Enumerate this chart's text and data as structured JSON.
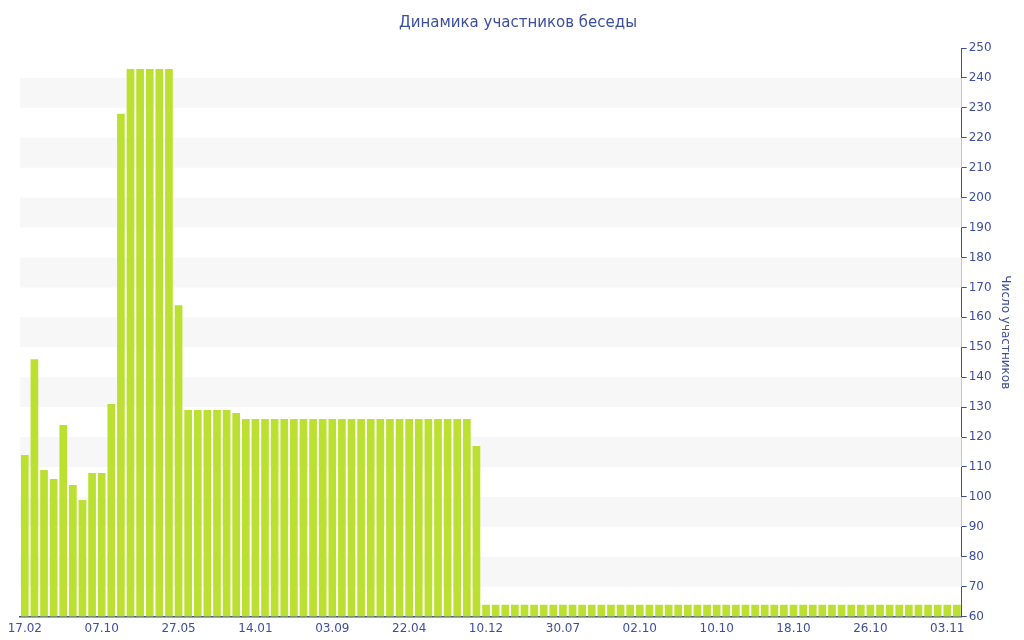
{
  "chart_data": {
    "type": "bar",
    "title": "Динамика участников беседы",
    "ylabel": "Число участников",
    "categories": [
      "17.02",
      null,
      null,
      null,
      null,
      null,
      null,
      null,
      "07.10",
      null,
      null,
      null,
      null,
      null,
      null,
      null,
      "27.05",
      null,
      null,
      null,
      null,
      null,
      null,
      null,
      "14.01",
      null,
      null,
      null,
      null,
      null,
      null,
      null,
      "03.09",
      null,
      null,
      null,
      null,
      null,
      null,
      null,
      "22.04",
      null,
      null,
      null,
      null,
      null,
      null,
      null,
      "10.12",
      null,
      null,
      null,
      null,
      null,
      null,
      null,
      "30.07",
      null,
      null,
      null,
      null,
      null,
      null,
      null,
      "02.10",
      null,
      null,
      null,
      null,
      null,
      null,
      null,
      "10.10",
      null,
      null,
      null,
      null,
      null,
      null,
      null,
      "18.10",
      null,
      null,
      null,
      null,
      null,
      null,
      null,
      "26.10",
      null,
      null,
      null,
      null,
      null,
      null,
      null,
      "03.11",
      null
    ],
    "values": [
      114,
      146,
      109,
      106,
      124,
      104,
      99,
      108,
      108,
      131,
      228,
      243,
      243,
      243,
      243,
      243,
      164,
      129,
      129,
      129,
      129,
      129,
      128,
      126,
      126,
      126,
      126,
      126,
      126,
      126,
      126,
      126,
      126,
      126,
      126,
      126,
      126,
      126,
      126,
      126,
      126,
      126,
      126,
      126,
      126,
      126,
      126,
      117,
      64,
      64,
      64,
      64,
      64,
      64,
      64,
      64,
      64,
      64,
      64,
      64,
      64,
      64,
      64,
      64,
      64,
      64,
      64,
      64,
      64,
      64,
      64,
      64,
      64,
      64,
      64,
      64,
      64,
      64,
      64,
      64,
      64,
      64,
      64,
      64,
      64,
      64,
      64,
      64,
      64,
      64,
      64,
      64,
      64,
      64,
      64,
      64,
      64,
      64
    ],
    "color": "#bbe031",
    "ylim": [
      60,
      250
    ],
    "yticks": [
      60,
      70,
      80,
      90,
      100,
      110,
      120,
      130,
      140,
      150,
      160,
      170,
      180,
      190,
      200,
      210,
      220,
      230,
      240,
      250
    ],
    "bands": [
      {
        "axis": "y",
        "from": 70,
        "to": 80,
        "color": "#f7f7f7"
      },
      {
        "axis": "y",
        "from": 90,
        "to": 100,
        "color": "#f7f7f7"
      },
      {
        "axis": "y",
        "from": 110,
        "to": 120,
        "color": "#f7f7f7"
      },
      {
        "axis": "y",
        "from": 130,
        "to": 140,
        "color": "#f7f7f7"
      },
      {
        "axis": "y",
        "from": 150,
        "to": 160,
        "color": "#f7f7f7"
      },
      {
        "axis": "y",
        "from": 170,
        "to": 180,
        "color": "#f7f7f7"
      },
      {
        "axis": "y",
        "from": 190,
        "to": 200,
        "color": "#f7f7f7"
      },
      {
        "axis": "y",
        "from": 210,
        "to": 220,
        "color": "#f7f7f7"
      },
      {
        "axis": "y",
        "from": 230,
        "to": 240,
        "color": "#f7f7f7"
      }
    ],
    "legend": false
  }
}
